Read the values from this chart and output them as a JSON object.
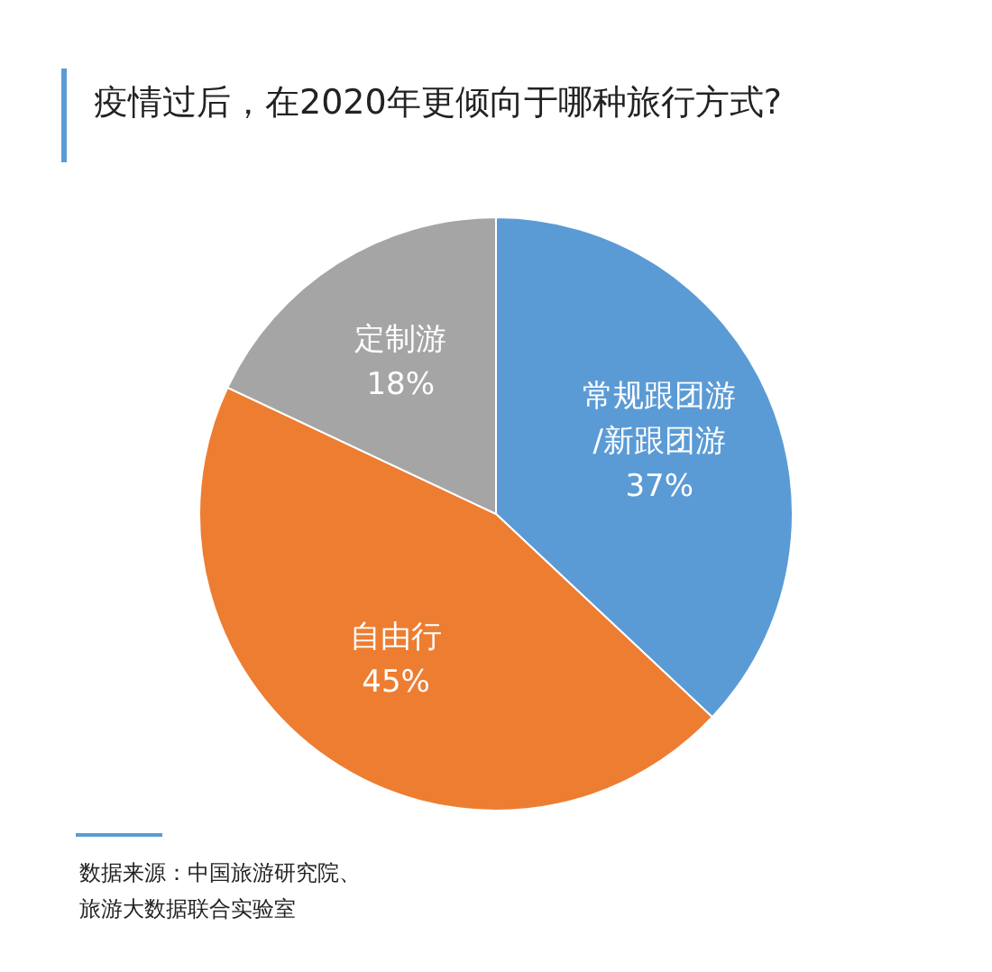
{
  "chart_data": {
    "type": "pie",
    "title": "疫情过后，在2020年更倾向于哪种旅行方式?",
    "categories": [
      "常规跟团游\n/新跟团游",
      "自由行",
      "定制游"
    ],
    "values": [
      37,
      45,
      18
    ],
    "value_labels": [
      "37%",
      "45%",
      "18%"
    ],
    "colors": [
      "#5b9bd5",
      "#ed7d31",
      "#a5a5a5"
    ],
    "legend": false,
    "annotations": [
      "数据来源：中国旅游研究院、旅游大数据联合实验室"
    ]
  }
}
